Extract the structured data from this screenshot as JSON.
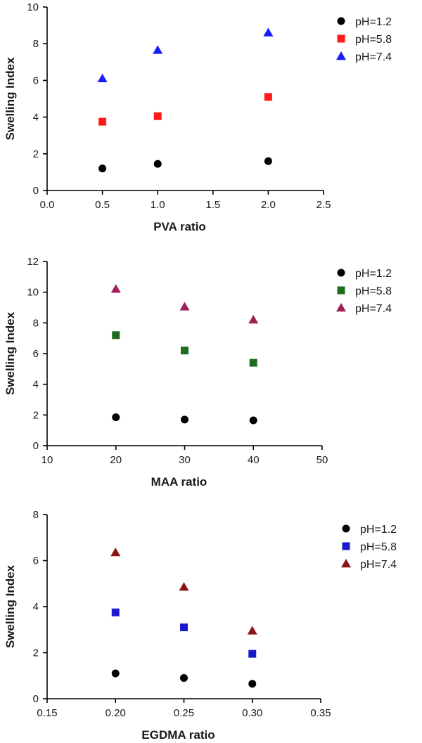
{
  "chart_data": [
    {
      "type": "scatter",
      "xlabel": "PVA ratio",
      "ylabel": "Swelling Index",
      "xlim": [
        0.0,
        2.5
      ],
      "ylim": [
        0,
        10
      ],
      "x_ticks": [
        "0.0",
        "0.5",
        "1.0",
        "1.5",
        "2.0",
        "2.5"
      ],
      "y_ticks": [
        "0",
        "2",
        "4",
        "6",
        "8",
        "10"
      ],
      "legend_position": "top-right",
      "series": [
        {
          "name": "pH=1.2",
          "marker": "circle",
          "color": "#000000",
          "x": [
            0.5,
            1.0,
            2.0
          ],
          "values": [
            1.2,
            1.45,
            1.6
          ]
        },
        {
          "name": "pH=5.8",
          "marker": "square",
          "color": "#ff1a1a",
          "x": [
            0.5,
            1.0,
            2.0
          ],
          "values": [
            3.75,
            4.05,
            5.1
          ]
        },
        {
          "name": "pH=7.4",
          "marker": "triangle",
          "color": "#1a1aff",
          "x": [
            0.5,
            1.0,
            2.0
          ],
          "values": [
            6.1,
            7.65,
            8.6
          ]
        }
      ]
    },
    {
      "type": "scatter",
      "xlabel": "MAA ratio",
      "ylabel": "Swelling Index",
      "xlim": [
        10,
        50
      ],
      "ylim": [
        0,
        12
      ],
      "x_ticks": [
        "10",
        "20",
        "30",
        "40",
        "50"
      ],
      "y_ticks": [
        "0",
        "2",
        "4",
        "6",
        "8",
        "10",
        "12"
      ],
      "legend_position": "top-right",
      "series": [
        {
          "name": "pH=1.2",
          "marker": "circle",
          "color": "#000000",
          "x": [
            20,
            30,
            40
          ],
          "values": [
            1.85,
            1.7,
            1.65
          ]
        },
        {
          "name": "pH=5.8",
          "marker": "square",
          "color": "#1f6b1f",
          "x": [
            20,
            30,
            40
          ],
          "values": [
            7.2,
            6.2,
            5.4
          ]
        },
        {
          "name": "pH=7.4",
          "marker": "triangle",
          "color": "#a0205a",
          "x": [
            20,
            30,
            40
          ],
          "values": [
            10.2,
            9.05,
            8.2
          ]
        }
      ]
    },
    {
      "type": "scatter",
      "xlabel": "EGDMA ratio",
      "ylabel": "Swelling Index",
      "xlim": [
        0.15,
        0.35
      ],
      "ylim": [
        0,
        8
      ],
      "x_ticks": [
        "0.15",
        "0.20",
        "0.25",
        "0.30",
        "0.35"
      ],
      "y_ticks": [
        "0",
        "2",
        "4",
        "6",
        "8"
      ],
      "legend_position": "top-right",
      "series": [
        {
          "name": "pH=1.2",
          "marker": "circle",
          "color": "#000000",
          "x": [
            0.2,
            0.25,
            0.3
          ],
          "values": [
            1.1,
            0.9,
            0.65
          ]
        },
        {
          "name": "pH=5.8",
          "marker": "square",
          "color": "#1a1acc",
          "x": [
            0.2,
            0.25,
            0.3
          ],
          "values": [
            3.75,
            3.1,
            1.95
          ]
        },
        {
          "name": "pH=7.4",
          "marker": "triangle",
          "color": "#8b1414",
          "x": [
            0.2,
            0.25,
            0.3
          ],
          "values": [
            6.35,
            4.85,
            2.95
          ]
        }
      ]
    }
  ]
}
